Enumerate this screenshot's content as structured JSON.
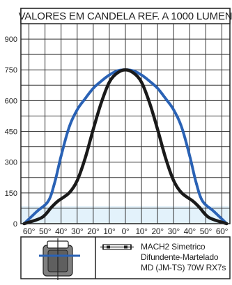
{
  "chart_data": {
    "type": "line",
    "title": "VALORES EM CANDELA REF. A 1000 LUMEN",
    "xlabel": "",
    "ylabel": "",
    "x_ticks": [
      "60°",
      "50°",
      "40°",
      "30°",
      "20°",
      "10°",
      "0°",
      "10°",
      "20°",
      "30°",
      "40°",
      "50°",
      "60°"
    ],
    "y_ticks": [
      "900",
      "750",
      "600",
      "450",
      "300",
      "150",
      "0"
    ],
    "xlim": [
      -65,
      65
    ],
    "ylim": [
      0,
      975
    ],
    "grid": true,
    "legend": "none",
    "colors": {
      "series_1": "#2a62b5",
      "series_2": "#1a1a1a",
      "shade": "#e3f2fb",
      "grid": "#333333"
    },
    "series": [
      {
        "x": [
          -63,
          -55,
          -48,
          -44,
          -40,
          -35,
          -30,
          -25,
          -20,
          -15,
          -10,
          -5,
          0,
          5,
          10,
          15,
          20,
          25,
          30,
          35,
          40,
          44,
          48,
          55,
          63
        ],
        "y": [
          0,
          60,
          110,
          200,
          330,
          470,
          555,
          610,
          660,
          695,
          725,
          745,
          750,
          745,
          725,
          695,
          660,
          610,
          555,
          470,
          330,
          200,
          110,
          60,
          0
        ]
      },
      {
        "x": [
          -63,
          -52,
          -46,
          -42,
          -35,
          -30,
          -25,
          -20,
          -15,
          -10,
          -5,
          0,
          5,
          10,
          15,
          20,
          25,
          30,
          35,
          42,
          46,
          52,
          63
        ],
        "y": [
          0,
          30,
          80,
          110,
          150,
          210,
          320,
          460,
          590,
          690,
          735,
          750,
          735,
          690,
          590,
          460,
          320,
          210,
          150,
          110,
          80,
          30,
          0
        ]
      }
    ]
  },
  "lamp": {
    "line1": "MACH2 Simetrico",
    "line2": "Difundente-Martelado",
    "line3": "MD (JM-TS) 70W RX7s"
  }
}
